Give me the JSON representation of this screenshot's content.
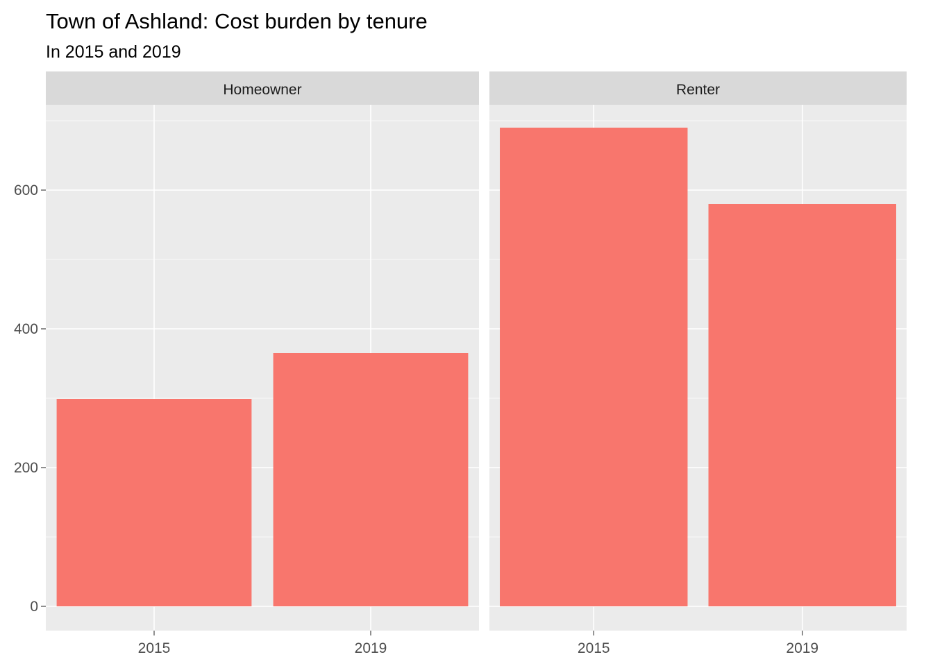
{
  "chart_data": {
    "type": "bar",
    "title": "Town of Ashland: Cost burden by tenure",
    "subtitle": "In 2015 and 2019",
    "xlabel": "",
    "ylabel": "",
    "categories": [
      "2015",
      "2019"
    ],
    "ylim": [
      0,
      720
    ],
    "yticks": [
      0,
      200,
      400,
      600
    ],
    "grid": true,
    "bar_color": "#F8766D",
    "panel_bg": "#EBEBEB",
    "strip_bg": "#D9D9D9",
    "facets": [
      {
        "name": "Homeowner",
        "values": [
          299,
          365
        ]
      },
      {
        "name": "Renter",
        "values": [
          690,
          580
        ]
      }
    ]
  }
}
